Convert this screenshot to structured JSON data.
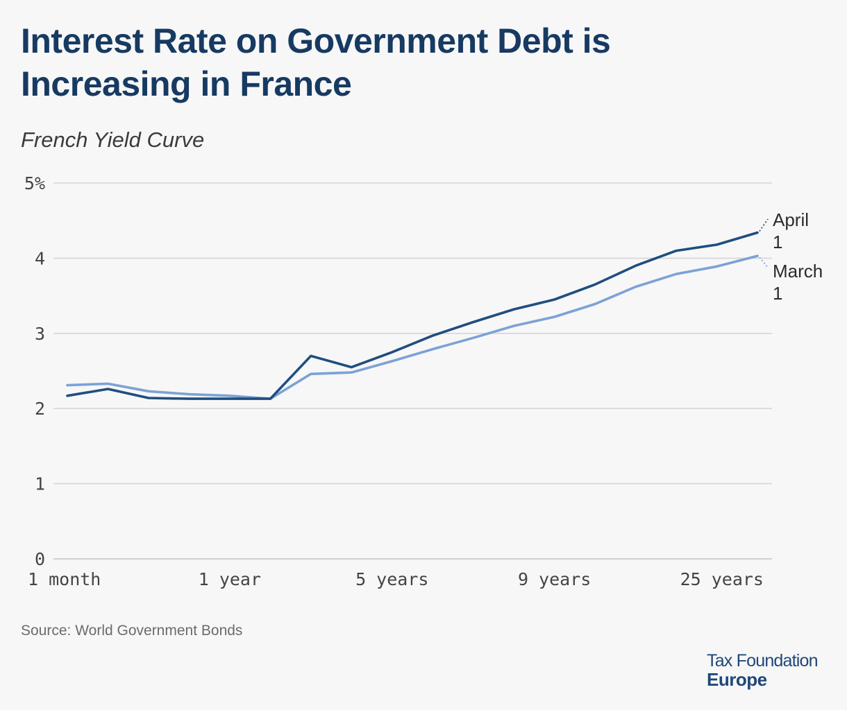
{
  "title": "Interest Rate on Government Debt is Increasing in France",
  "subtitle": "French Yield Curve",
  "source": "Source: World Government Bonds",
  "logo": {
    "line1": "Tax Foundation",
    "line2": "Europe"
  },
  "colors": {
    "april": "#1f4e7f",
    "march": "#7ba2d6",
    "grid": "#d6d6d6",
    "title": "#173a62"
  },
  "chart_data": {
    "type": "line",
    "title": "French Yield Curve",
    "xlabel": "",
    "ylabel": "",
    "ylim": [
      0,
      5
    ],
    "grid": true,
    "y_ticks": [
      {
        "value": 0,
        "label": "0"
      },
      {
        "value": 1,
        "label": "1"
      },
      {
        "value": 2,
        "label": "2"
      },
      {
        "value": 3,
        "label": "3"
      },
      {
        "value": 4,
        "label": "4"
      },
      {
        "value": 5,
        "label": "5%"
      }
    ],
    "x_ticks": [
      {
        "index": 0,
        "label": "1 month"
      },
      {
        "index": 4,
        "label": "1 year"
      },
      {
        "index": 8,
        "label": "5 years"
      },
      {
        "index": 12,
        "label": "9 years"
      },
      {
        "index": 16,
        "label": "25 years"
      }
    ],
    "x_count": 18,
    "series": [
      {
        "name": "April 1",
        "label_lines": [
          "April",
          "1"
        ],
        "color": "#1f4e7f",
        "values": [
          2.17,
          2.26,
          2.14,
          2.13,
          2.13,
          2.13,
          2.7,
          2.55,
          2.75,
          2.97,
          3.15,
          3.32,
          3.45,
          3.65,
          3.9,
          4.1,
          4.18,
          4.34
        ]
      },
      {
        "name": "March 1",
        "label_lines": [
          "March",
          "1"
        ],
        "color": "#7ba2d6",
        "values": [
          2.31,
          2.33,
          2.23,
          2.19,
          2.17,
          2.13,
          2.46,
          2.48,
          2.63,
          2.79,
          2.94,
          3.1,
          3.22,
          3.39,
          3.62,
          3.79,
          3.89,
          4.03
        ]
      }
    ]
  }
}
